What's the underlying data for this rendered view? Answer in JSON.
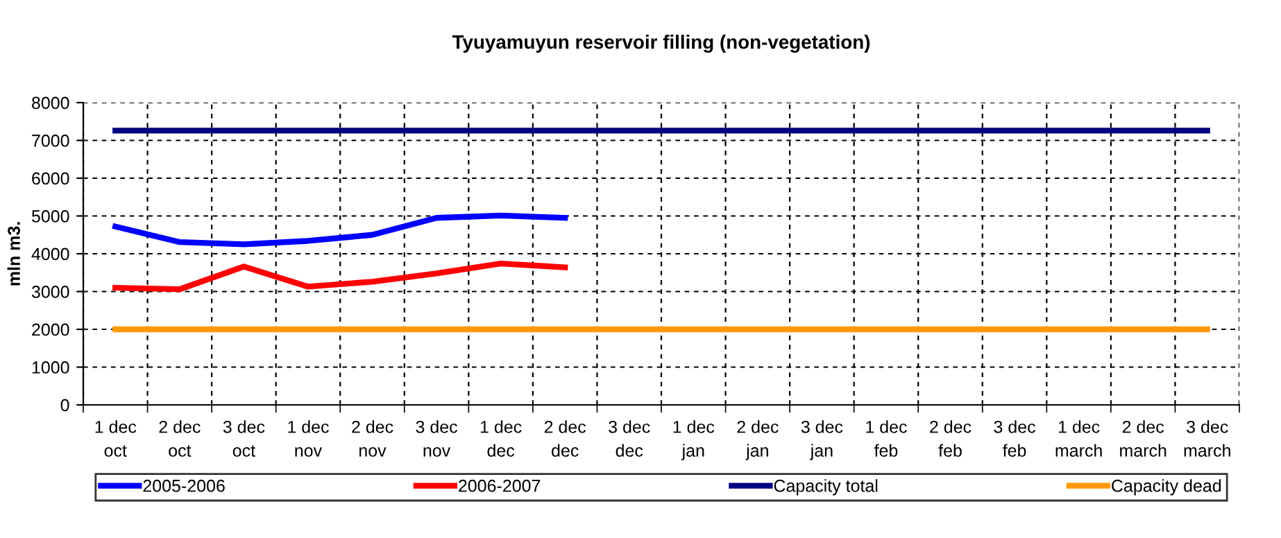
{
  "chart_data": {
    "type": "line",
    "title": "Tyuyamuyun reservoir filling (non-vegetation)",
    "ylabel": "mln m3.",
    "categories": [
      "1 dec\noct",
      "2 dec\noct",
      "3 dec\noct",
      "1 dec\nnov",
      "2 dec\nnov",
      "3 dec\nnov",
      "1 dec\ndec",
      "2 dec\ndec",
      "3 dec\ndec",
      "1 dec\njan",
      "2 dec\njan",
      "3 dec\njan",
      "1 dec\nfeb",
      "2 dec\nfeb",
      "3 dec\nfeb",
      "1 dec\nmarch",
      "2 dec\nmarch",
      "3 dec\nmarch"
    ],
    "series": [
      {
        "name": "2005-2006",
        "color": "#0000ff",
        "values": [
          4720,
          4310,
          4250,
          4340,
          4500,
          4950,
          5010,
          4950,
          null,
          null,
          null,
          null,
          null,
          null,
          null,
          null,
          null,
          null
        ]
      },
      {
        "name": "2006-2007",
        "color": "#ff0000",
        "values": [
          3100,
          3060,
          3660,
          3130,
          3260,
          3480,
          3740,
          3640,
          null,
          null,
          null,
          null,
          null,
          null,
          null,
          null,
          null,
          null
        ]
      },
      {
        "name": "Capacity total",
        "color": "#000080",
        "values": [
          7260,
          7260,
          7260,
          7260,
          7260,
          7260,
          7260,
          7260,
          7260,
          7260,
          7260,
          7260,
          7260,
          7260,
          7260,
          7260,
          7260,
          7260
        ]
      },
      {
        "name": "Capacity dead",
        "color": "#ff9900",
        "values": [
          2000,
          2000,
          2000,
          2000,
          2000,
          2000,
          2000,
          2000,
          2000,
          2000,
          2000,
          2000,
          2000,
          2000,
          2000,
          2000,
          2000,
          2000
        ]
      }
    ],
    "ylim": [
      0,
      8000
    ],
    "yticks": [
      0,
      1000,
      2000,
      3000,
      4000,
      5000,
      6000,
      7000,
      8000
    ],
    "grid": true,
    "legend": "bottom",
    "marker": "none",
    "line_style": "solid"
  }
}
